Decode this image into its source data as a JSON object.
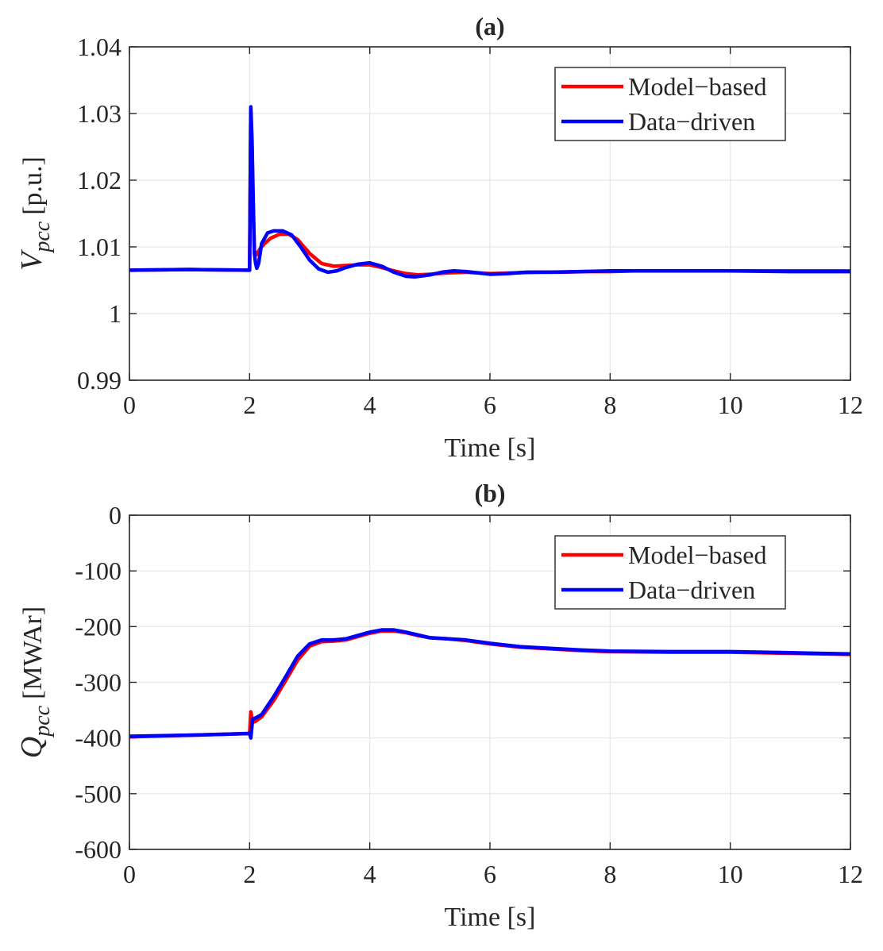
{
  "chart_data": [
    {
      "type": "line",
      "title": "(a)",
      "xlabel": "Time [s]",
      "ylabel": "V",
      "ylabel_subscript": "pcc",
      "ylabel_unit": "[p.u.]",
      "xlim": [
        0,
        12
      ],
      "ylim": [
        0.99,
        1.04
      ],
      "xticks": [
        0,
        2,
        4,
        6,
        8,
        10,
        12
      ],
      "xtick_labels": [
        "0",
        "2",
        "4",
        "6",
        "8",
        "10",
        "12"
      ],
      "yticks": [
        0.99,
        1.0,
        1.01,
        1.02,
        1.03,
        1.04
      ],
      "ytick_labels": [
        "0.99",
        "1",
        "1.01",
        "1.02",
        "1.03",
        "1.04"
      ],
      "grid": true,
      "legend_position": "top-right",
      "series": [
        {
          "name": "Model−based",
          "color": "#ff0000",
          "x": [
            0,
            1,
            2.0,
            2.02,
            2.04,
            2.06,
            2.08,
            2.11,
            2.14,
            2.18,
            2.25,
            2.35,
            2.5,
            2.65,
            2.8,
            3.0,
            3.2,
            3.4,
            3.6,
            3.8,
            4.0,
            4.2,
            4.4,
            4.6,
            4.8,
            5.0,
            5.3,
            5.6,
            6.0,
            6.4,
            6.8,
            7.2,
            7.6,
            8.0,
            8.4,
            9.0,
            10.0,
            11.0,
            12.0
          ],
          "y": [
            1.0065,
            1.0066,
            1.0065,
            1.0305,
            1.025,
            1.0155,
            1.0095,
            1.0088,
            1.0092,
            1.0098,
            1.0105,
            1.0113,
            1.0119,
            1.0119,
            1.0111,
            1.009,
            1.0075,
            1.0071,
            1.0072,
            1.0073,
            1.0073,
            1.0069,
            1.0064,
            1.006,
            1.0058,
            1.0059,
            1.0061,
            1.0062,
            1.006,
            1.0061,
            1.0062,
            1.0062,
            1.0063,
            1.0063,
            1.0064,
            1.0064,
            1.0064,
            1.0064,
            1.0064
          ]
        },
        {
          "name": "Data−driven",
          "color": "#0000ff",
          "x": [
            0,
            1,
            2.0,
            2.02,
            2.04,
            2.06,
            2.08,
            2.1,
            2.12,
            2.15,
            2.2,
            2.3,
            2.4,
            2.55,
            2.7,
            2.85,
            3.0,
            3.15,
            3.3,
            3.45,
            3.6,
            3.8,
            4.0,
            4.2,
            4.4,
            4.6,
            4.75,
            5.0,
            5.2,
            5.4,
            5.6,
            5.8,
            6.0,
            6.3,
            6.6,
            7.0,
            7.5,
            8.0,
            8.4,
            9.0,
            10.0,
            11.0,
            12.0
          ],
          "y": [
            1.0065,
            1.0066,
            1.0065,
            1.031,
            1.026,
            1.017,
            1.009,
            1.0075,
            1.0068,
            1.0075,
            1.0105,
            1.0121,
            1.0124,
            1.0124,
            1.0118,
            1.01,
            1.008,
            1.0067,
            1.0062,
            1.0064,
            1.0069,
            1.0074,
            1.0076,
            1.0071,
            1.0062,
            1.0056,
            1.0055,
            1.0058,
            1.0062,
            1.0064,
            1.0063,
            1.0061,
            1.0059,
            1.006,
            1.0062,
            1.0062,
            1.0063,
            1.0064,
            1.0064,
            1.0064,
            1.0064,
            1.0063,
            1.0063
          ]
        }
      ]
    },
    {
      "type": "line",
      "title": "(b)",
      "xlabel": "Time [s]",
      "ylabel": "Q",
      "ylabel_subscript": "pcc",
      "ylabel_unit": "[MWAr]",
      "xlim": [
        0,
        12
      ],
      "ylim": [
        -600,
        0
      ],
      "xticks": [
        0,
        2,
        4,
        6,
        8,
        10,
        12
      ],
      "xtick_labels": [
        "0",
        "2",
        "4",
        "6",
        "8",
        "10",
        "12"
      ],
      "yticks": [
        -600,
        -500,
        -400,
        -300,
        -200,
        -100,
        0
      ],
      "ytick_labels": [
        "-600",
        "-500",
        "-400",
        "-300",
        "-200",
        "-100",
        "0"
      ],
      "grid": true,
      "legend_position": "top-right",
      "series": [
        {
          "name": "Model−based",
          "color": "#ff0000",
          "x": [
            0,
            1,
            2.0,
            2.02,
            2.05,
            2.1,
            2.2,
            2.4,
            2.6,
            2.8,
            3.0,
            3.2,
            3.4,
            3.6,
            3.8,
            4.0,
            4.2,
            4.4,
            4.6,
            4.8,
            5.0,
            5.3,
            5.6,
            6.0,
            6.5,
            7.0,
            7.5,
            8.0,
            9.0,
            10.0,
            11.0,
            12.0
          ],
          "y": [
            -398,
            -395,
            -392,
            -353,
            -372,
            -370,
            -362,
            -333,
            -297,
            -260,
            -235,
            -227,
            -226,
            -224,
            -218,
            -212,
            -208,
            -208,
            -211,
            -216,
            -220,
            -222,
            -225,
            -231,
            -237,
            -240,
            -243,
            -245,
            -246,
            -246,
            -248,
            -250
          ]
        },
        {
          "name": "Data−driven",
          "color": "#0000ff",
          "x": [
            0,
            1,
            2.0,
            2.02,
            2.05,
            2.1,
            2.2,
            2.4,
            2.6,
            2.8,
            3.0,
            3.2,
            3.4,
            3.6,
            3.8,
            4.0,
            4.2,
            4.4,
            4.6,
            4.8,
            5.0,
            5.3,
            5.6,
            6.0,
            6.5,
            7.0,
            7.5,
            8.0,
            9.0,
            10.0,
            11.0,
            12.0
          ],
          "y": [
            -397,
            -395,
            -392,
            -400,
            -366,
            -364,
            -358,
            -326,
            -290,
            -253,
            -231,
            -224,
            -224,
            -222,
            -216,
            -210,
            -206,
            -206,
            -210,
            -215,
            -220,
            -222,
            -224,
            -230,
            -236,
            -239,
            -242,
            -244,
            -245,
            -245,
            -247,
            -249
          ]
        }
      ]
    }
  ]
}
